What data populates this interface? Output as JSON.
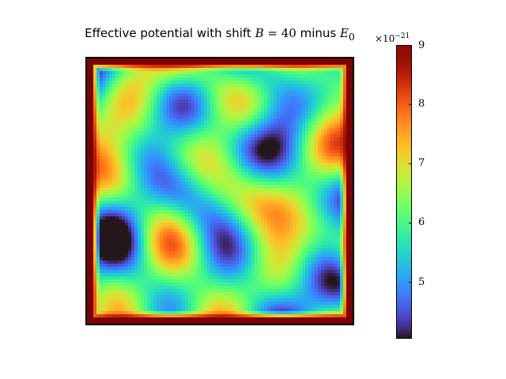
{
  "chart_data": {
    "type": "heatmap",
    "title_prefix": "Effective potential with shift ",
    "title_B": "B",
    "title_eq": " = 40",
    "title_minus": " minus ",
    "title_E": "E",
    "title_sub": "0",
    "colormap": "turbo",
    "colorbar": {
      "range": [
        4.05,
        9.0
      ],
      "ticks": [
        5,
        6,
        7,
        8,
        9
      ],
      "tick_labels": [
        "5",
        "6",
        "7",
        "8",
        "9"
      ],
      "multiplier_base": "×10",
      "multiplier_exp": "−21"
    },
    "field_description_values": {
      "border_value": 9.0,
      "interior_mean": 5.9,
      "interior_min": 4.1,
      "interior_max": 8.6
    },
    "xlabel": "",
    "ylabel": "",
    "axes_visible": false,
    "grid": false
  }
}
